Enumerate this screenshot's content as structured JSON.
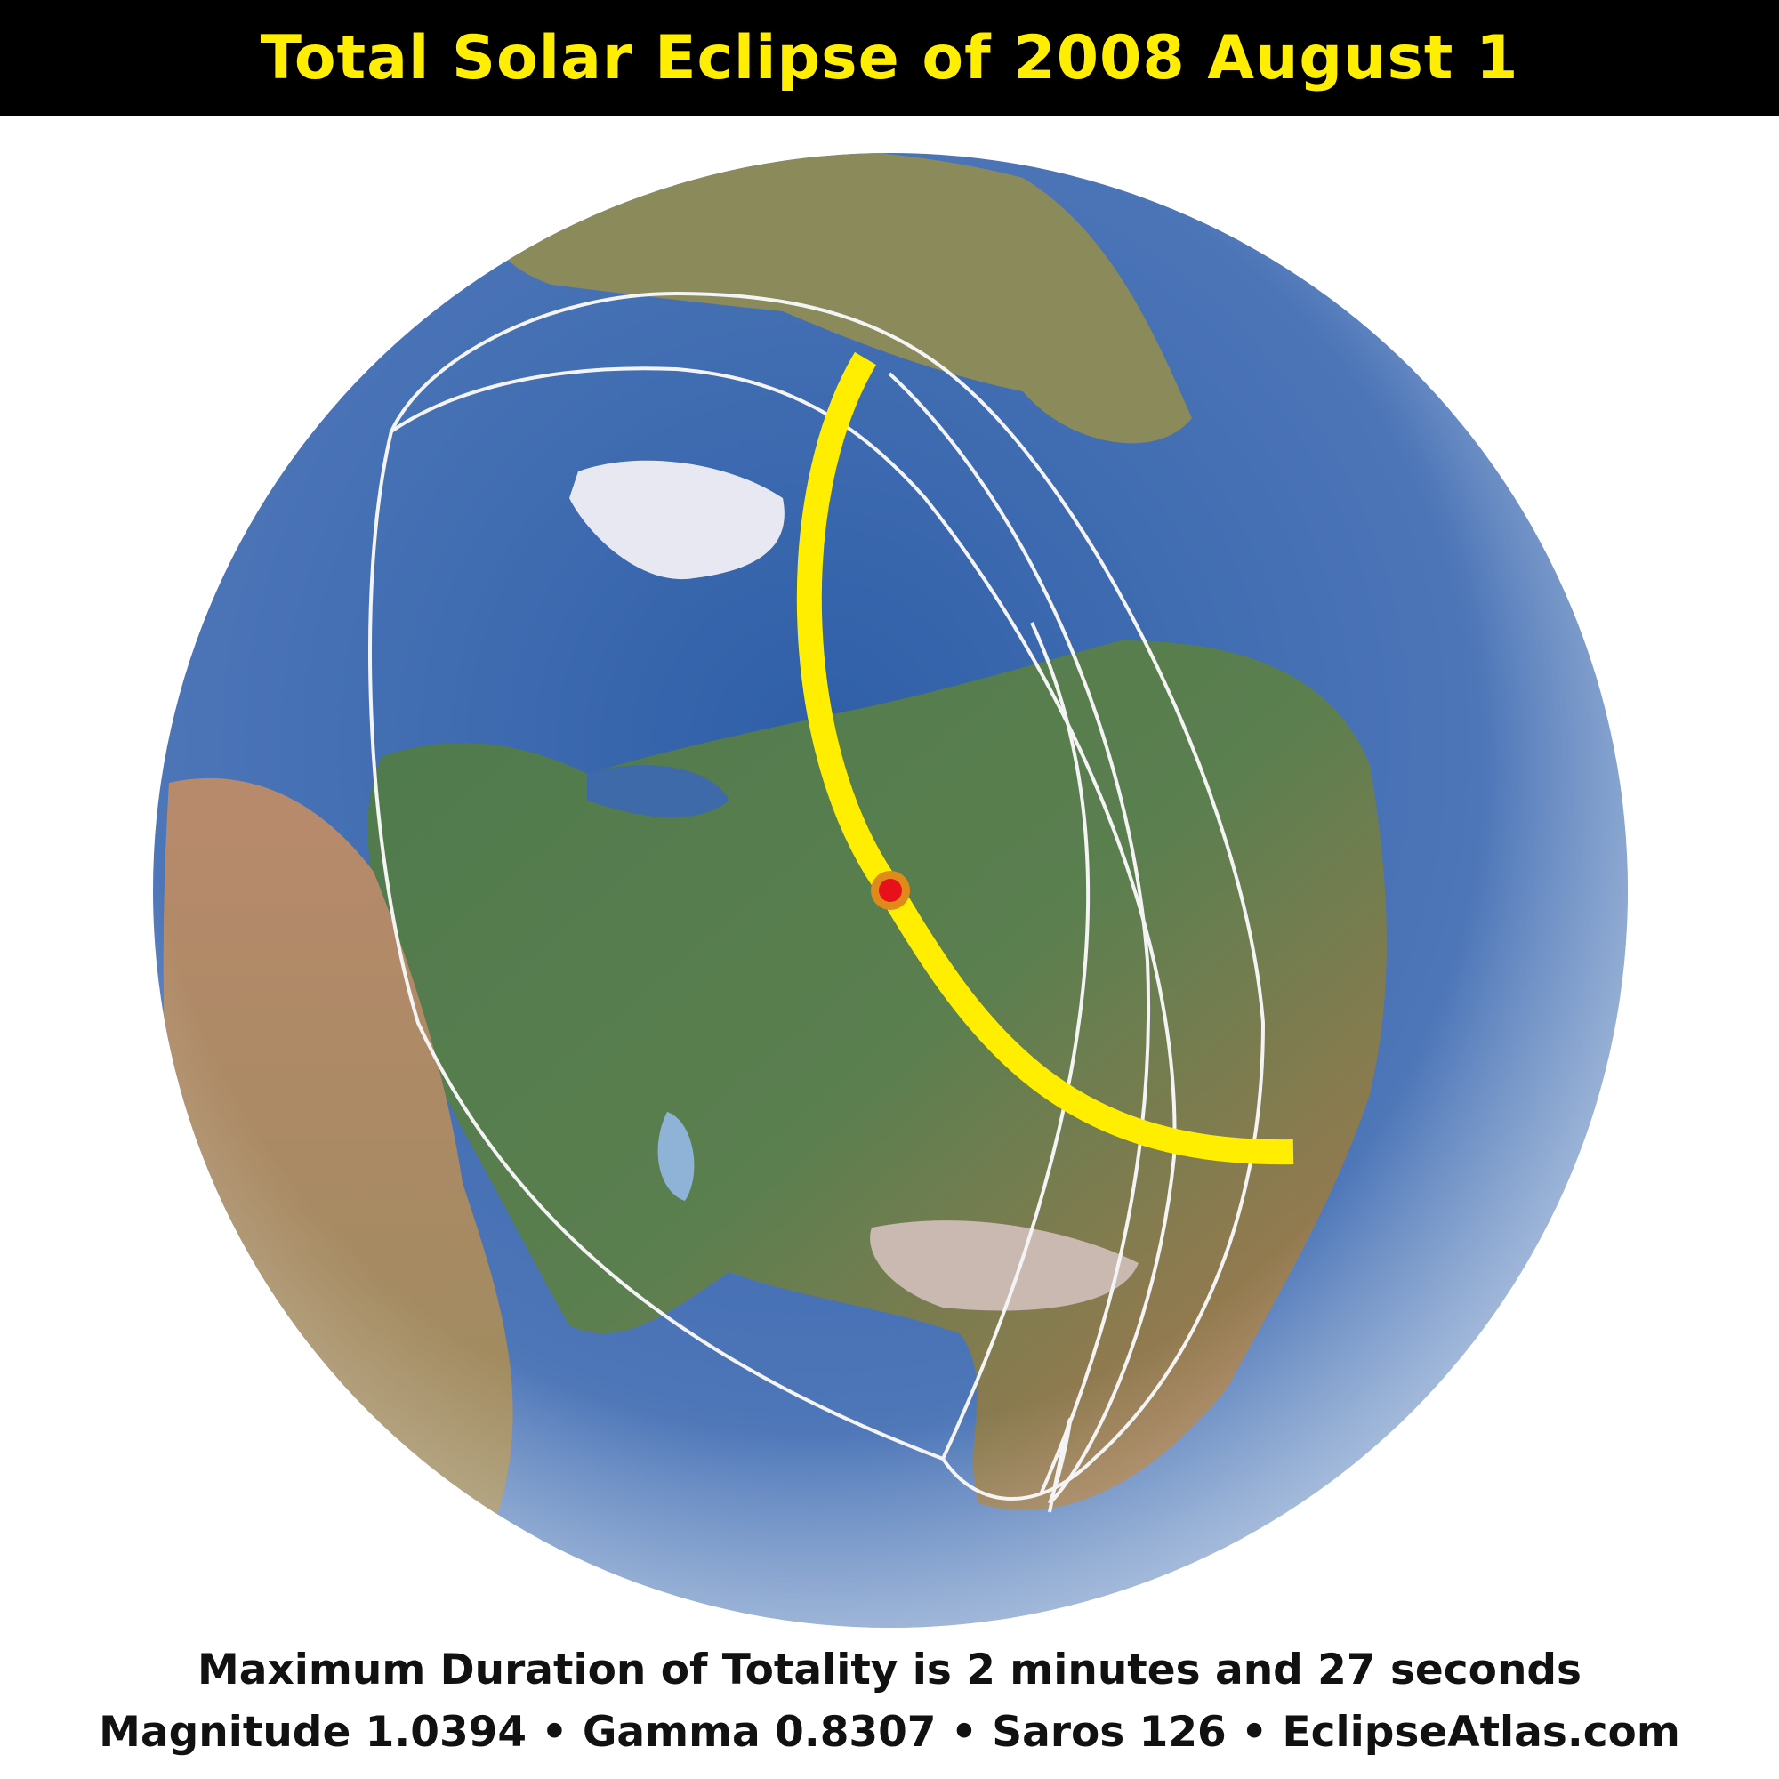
{
  "title": "Total Solar Eclipse of 2008 August 1",
  "footer": {
    "lines": [
      "Maximum Duration of Totality is 2 minutes and 27 seconds",
      "Magnitude 1.0394 • Gamma 0.8307 • Saros 126 • EclipseAtlas.com"
    ]
  }
}
